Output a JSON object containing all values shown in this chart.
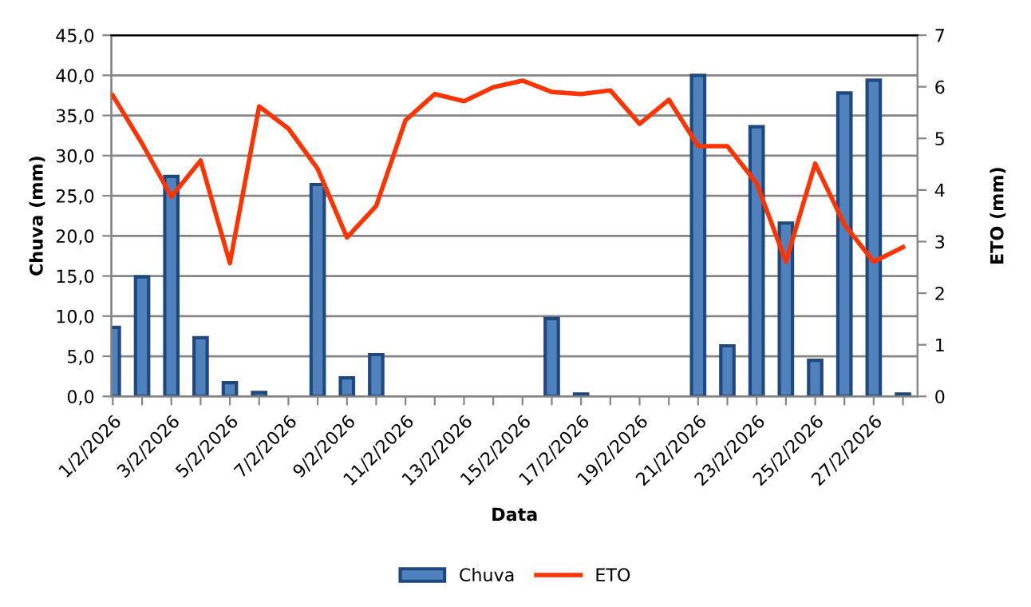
{
  "chart_data": {
    "type": "bar",
    "xlabel": "Data",
    "ylabel": "Chuva (mm)",
    "y2label": "ETO (mm)",
    "categories": [
      "1/2/2026",
      null,
      "3/2/2026",
      null,
      "5/2/2026",
      null,
      "7/2/2026",
      null,
      "9/2/2026",
      null,
      "11/2/2026",
      null,
      "13/2/2026",
      null,
      "15/2/2026",
      null,
      "17/2/2026",
      null,
      "19/2/2026",
      null,
      "21/2/2026",
      null,
      "23/2/2026",
      null,
      "25/2/2026",
      null,
      "27/2/2026",
      null
    ],
    "series": [
      {
        "name": "Chuva",
        "color": "#4f81bd",
        "values": [
          8.6,
          14.9,
          27.4,
          7.3,
          1.7,
          0.5,
          0,
          26.4,
          2.3,
          5.2,
          0,
          0,
          0,
          0,
          0,
          9.7,
          0.3,
          0,
          0,
          0,
          40.0,
          6.3,
          33.6,
          21.6,
          4.5,
          37.8,
          39.4,
          0.3
        ]
      },
      {
        "name": "ETO",
        "type": "line",
        "axis": "y2",
        "color": "#ff3300",
        "values": [
          5.83,
          4.9,
          3.87,
          4.57,
          2.58,
          5.62,
          5.19,
          4.41,
          3.08,
          3.69,
          5.35,
          5.86,
          5.72,
          5.99,
          6.12,
          5.9,
          5.86,
          5.93,
          5.28,
          5.75,
          4.85,
          4.85,
          4.13,
          2.61,
          4.51,
          3.33,
          2.61,
          2.89
        ]
      }
    ],
    "ylim": [
      0,
      45
    ],
    "yticks": [
      {
        "value": 0,
        "label": "0,0"
      },
      {
        "value": 5,
        "label": "5,0"
      },
      {
        "value": 10,
        "label": "10,0"
      },
      {
        "value": 15,
        "label": "15,0"
      },
      {
        "value": 20,
        "label": "20,0"
      },
      {
        "value": 25,
        "label": "25,0"
      },
      {
        "value": 30,
        "label": "30,0"
      },
      {
        "value": 35,
        "label": "35,0"
      },
      {
        "value": 40,
        "label": "40,0"
      },
      {
        "value": 45,
        "label": "45,0"
      }
    ],
    "y2lim": [
      0,
      7
    ],
    "y2ticks": [
      0,
      1,
      2,
      3,
      4,
      5,
      6,
      7
    ],
    "grid": "y",
    "legend": "bottom",
    "marker": "none",
    "line_style": "solid"
  }
}
